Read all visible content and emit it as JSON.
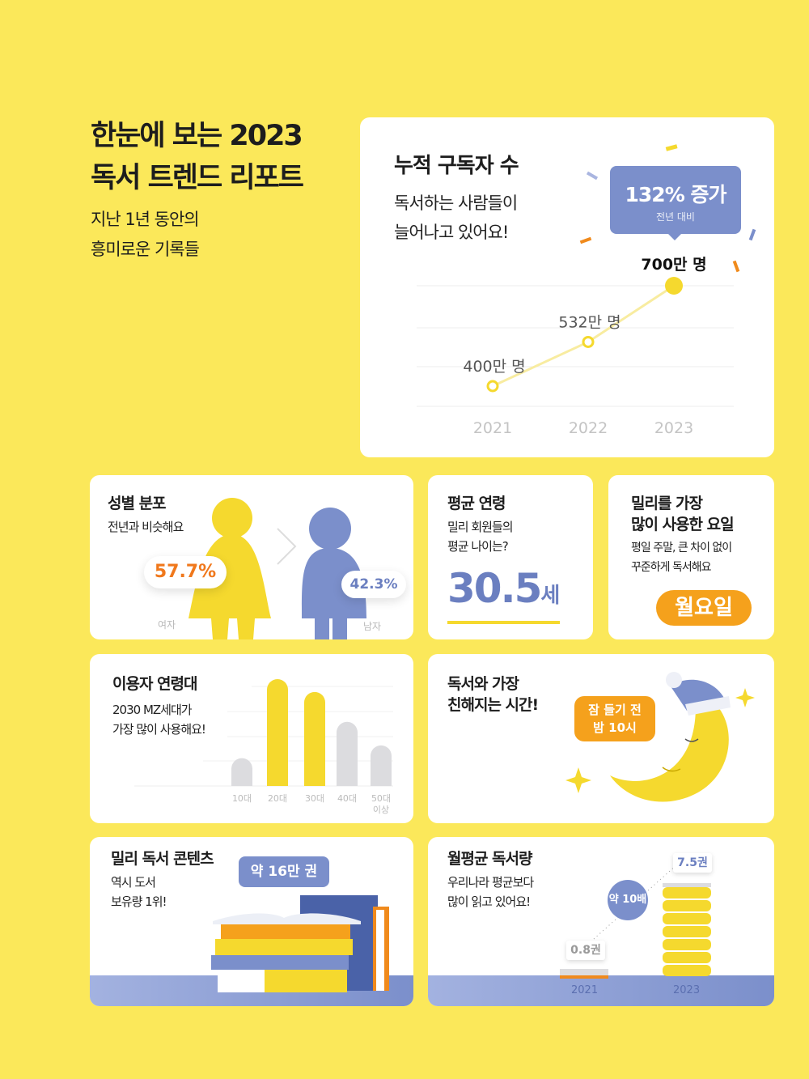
{
  "header": {
    "title_line1": "한눈에 보는 2023",
    "title_line2": "독서 트렌드 리포트",
    "subtitle_line1": "지난 1년 동안의",
    "subtitle_line2": "흥미로운 기록들"
  },
  "subscribers": {
    "title": "누적 구독자 수",
    "desc_line1": "독서하는 사람들이",
    "desc_line2": "늘어나고 있어요!",
    "badge_value": "132% 증가",
    "badge_sub": "전년 대비"
  },
  "chart_data": [
    {
      "type": "line",
      "x": [
        "2021",
        "2022",
        "2023"
      ],
      "values": [
        400,
        532,
        700
      ],
      "labels": [
        "400만 명",
        "532만 명",
        "700만 명"
      ],
      "unit": "만 명",
      "grid": true
    },
    {
      "type": "bar",
      "categories": [
        "10대",
        "20대",
        "30대",
        "40대",
        "50대 이상"
      ],
      "values": [
        26,
        100,
        88,
        60,
        38
      ],
      "highlight": [
        "20대",
        "30대"
      ],
      "grid": true
    }
  ],
  "gender": {
    "title": "성별 분포",
    "desc": "전년과 비슷해요",
    "female_pct": "57.7%",
    "male_pct": "42.3%",
    "female_label": "여자",
    "male_label": "남자"
  },
  "avg_age": {
    "title": "평균 연령",
    "desc_line1": "밀리 회원들의",
    "desc_line2": "평균 나이는?",
    "value": "30.5",
    "unit": "세"
  },
  "weekday": {
    "title_line1": "밀리를 가장",
    "title_line2": "많이 사용한 요일",
    "desc_line1": "평일 주말, 큰 차이 없이",
    "desc_line2": "꾸준하게 독서해요",
    "value": "월요일"
  },
  "age_group": {
    "title": "이용자 연령대",
    "desc_line1": "2030 MZ세대가",
    "desc_line2": "가장 많이 사용해요!",
    "last_label_line1": "50대",
    "last_label_line2": "이상"
  },
  "reading_time": {
    "title_line1": "독서와 가장",
    "title_line2": "친해지는 시간!",
    "bubble_line1": "잠 들기 전",
    "bubble_line2": "밤 10시"
  },
  "contents": {
    "title": "밀리 독서 콘텐츠",
    "desc_line1": "역시 도서",
    "desc_line2": "보유량 1위!",
    "bubble": "약 16만 권"
  },
  "monthly": {
    "title": "월평균 독서량",
    "desc_line1": "우리나라 평균보다",
    "desc_line2": "많이 읽고 있어요!",
    "value_2021": "0.8권",
    "value_2023": "7.5권",
    "ratio": "약 10배",
    "year_2021": "2021",
    "year_2023": "2023"
  },
  "colors": {
    "background": "#fbe85a",
    "yellow": "#f5d92e",
    "blue": "#7b8fcb",
    "orange": "#f08a1c",
    "gray": "#dcdcdf"
  }
}
